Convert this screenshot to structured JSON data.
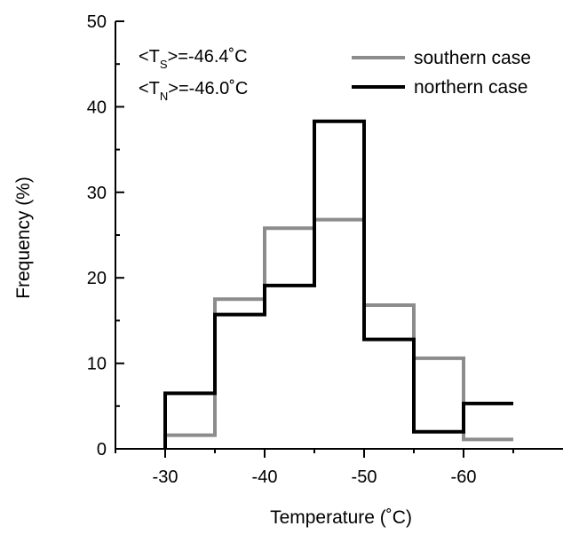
{
  "chart_data": {
    "type": "step",
    "xlabel": "Temperature (˚C)",
    "ylabel": "Frequency (%)",
    "xlim": [
      -25,
      -70
    ],
    "ylim": [
      0,
      50
    ],
    "x_ticks": [
      -30,
      -40,
      -50,
      -60
    ],
    "x_tick_labels": [
      "-30",
      "-40",
      "-50",
      "-60"
    ],
    "y_ticks": [
      0,
      10,
      20,
      30,
      40,
      50
    ],
    "y_tick_labels": [
      "0",
      "10",
      "20",
      "30",
      "40",
      "50"
    ],
    "grid": false,
    "legend_position": "top-right",
    "bin_edges": [
      -30,
      -35,
      -40,
      -45,
      -50,
      -55,
      -60,
      -65
    ],
    "series": [
      {
        "name": "southern case",
        "color": "#8c8c8c",
        "values": [
          1.6,
          17.5,
          25.8,
          26.8,
          16.8,
          10.6,
          1.1
        ]
      },
      {
        "name": "northern case",
        "color": "#000000",
        "values": [
          6.5,
          15.7,
          19.1,
          38.3,
          12.8,
          2.0,
          5.3
        ]
      }
    ],
    "annotations": {
      "south_mean": {
        "pre": "<T",
        "sub": "S",
        "post": ">=-46.4˚C"
      },
      "north_mean": {
        "pre": "<T",
        "sub": "N",
        "post": ">=-46.0˚C"
      }
    }
  }
}
